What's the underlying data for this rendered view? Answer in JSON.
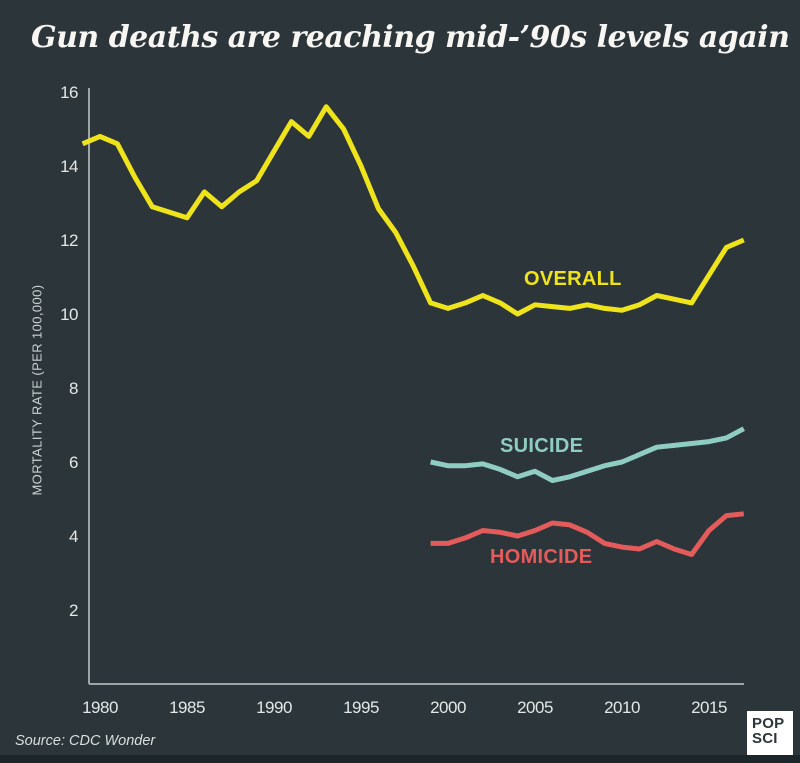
{
  "page": {
    "title": "Gun deaths are reaching mid-’90s levels again",
    "source": "Source: CDC Wonder",
    "logo": {
      "line1": "POP",
      "line2": "SCI"
    },
    "background_color": "#2c3539",
    "bottom_strip_color": "#1c2529"
  },
  "chart_data": {
    "type": "line",
    "title": "Gun deaths are reaching mid-’90s levels again",
    "xlabel": "",
    "ylabel": "MORTALITY RATE (PER 100,000)",
    "x_ticks": [
      1980,
      1985,
      1990,
      1995,
      2000,
      2005,
      2010,
      2015
    ],
    "y_ticks": [
      16,
      14,
      12,
      10,
      8,
      6,
      4,
      2
    ],
    "xlim": [
      1979,
      2017.5
    ],
    "ylim": [
      0,
      16
    ],
    "grid": false,
    "legend": "inline-labels",
    "axis_color": "#9da5a7",
    "tick_label_color": "#e3e7e7",
    "series": [
      {
        "name": "OVERALL",
        "color": "#efe41b",
        "x": [
          1979,
          1980,
          1981,
          1982,
          1983,
          1984,
          1985,
          1986,
          1987,
          1988,
          1989,
          1990,
          1991,
          1992,
          1993,
          1994,
          1995,
          1996,
          1997,
          1998,
          1999,
          2000,
          2001,
          2002,
          2003,
          2004,
          2005,
          2006,
          2007,
          2008,
          2009,
          2010,
          2011,
          2012,
          2013,
          2014,
          2015,
          2016,
          2017
        ],
        "values": [
          14.6,
          14.8,
          14.6,
          13.7,
          12.9,
          12.75,
          12.6,
          13.3,
          12.9,
          13.3,
          13.6,
          14.4,
          15.2,
          14.8,
          15.6,
          15.0,
          14.0,
          12.85,
          12.2,
          11.3,
          10.3,
          10.15,
          10.3,
          10.5,
          10.3,
          10.0,
          10.25,
          10.2,
          10.15,
          10.25,
          10.15,
          10.1,
          10.25,
          10.5,
          10.4,
          10.3,
          11.05,
          11.8,
          12.0
        ]
      },
      {
        "name": "SUICIDE",
        "color": "#8fccc2",
        "x": [
          1999,
          2000,
          2001,
          2002,
          2003,
          2004,
          2005,
          2006,
          2007,
          2008,
          2009,
          2010,
          2011,
          2012,
          2013,
          2014,
          2015,
          2016,
          2017
        ],
        "values": [
          6.0,
          5.9,
          5.9,
          5.95,
          5.8,
          5.6,
          5.75,
          5.5,
          5.6,
          5.75,
          5.9,
          6.0,
          6.2,
          6.4,
          6.45,
          6.5,
          6.55,
          6.65,
          6.9
        ]
      },
      {
        "name": "HOMICIDE",
        "color": "#e35b5b",
        "x": [
          1999,
          2000,
          2001,
          2002,
          2003,
          2004,
          2005,
          2006,
          2007,
          2008,
          2009,
          2010,
          2011,
          2012,
          2013,
          2014,
          2015,
          2016,
          2017
        ],
        "values": [
          3.8,
          3.8,
          3.95,
          4.15,
          4.1,
          4.0,
          4.15,
          4.35,
          4.3,
          4.1,
          3.8,
          3.7,
          3.65,
          3.85,
          3.65,
          3.5,
          4.15,
          4.55,
          4.6
        ]
      }
    ]
  }
}
